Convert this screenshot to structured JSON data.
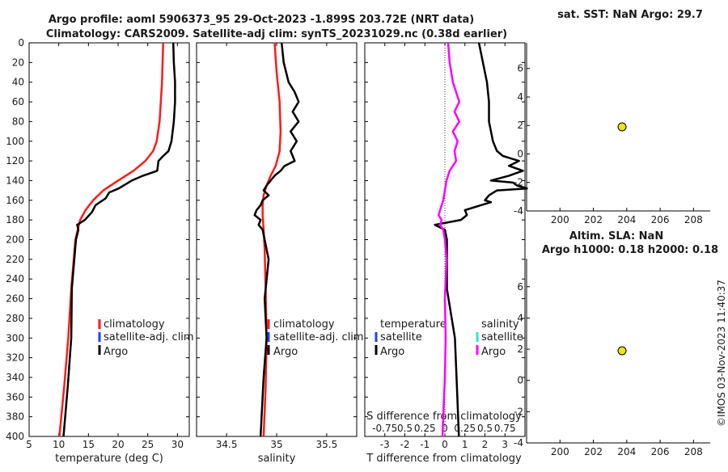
{
  "title_line1": "Argo profile: aoml 5906373_95 29-Oct-2023 -1.899S 203.72E (NRT data)",
  "title_line2": "Climatology: CARS2009. Satellite-adj clim: synTS_20231029.nc (0.38d earlier)",
  "watermark": "©IMOS 03-Nov-2023 11:40:37",
  "colors": {
    "red": "#ff1a1a",
    "black": "#000000",
    "blue": "#1f3fff",
    "magenta": "#ff00ff",
    "cyan": "#33dddd",
    "yellow": "#f0e020"
  },
  "chart_data": [
    {
      "type": "line",
      "id": "temperature",
      "xlabel": "temperature (deg C)",
      "ylabel": "",
      "xlim": [
        5,
        32
      ],
      "ylim": [
        400,
        0
      ],
      "xticks": [
        5,
        10,
        15,
        20,
        25,
        30
      ],
      "yticks": [
        0,
        20,
        40,
        60,
        80,
        100,
        120,
        140,
        160,
        180,
        200,
        220,
        240,
        260,
        280,
        300,
        320,
        340,
        360,
        380,
        400
      ],
      "legend": [
        "climatology",
        "satellite-adj. clim",
        "Argo"
      ],
      "series": [
        {
          "name": "climatology",
          "color": "red",
          "depth": [
            0,
            40,
            80,
            100,
            110,
            120,
            130,
            140,
            150,
            160,
            170,
            180,
            200,
            250,
            300,
            350,
            400
          ],
          "values": [
            27.6,
            27.4,
            27.0,
            26.5,
            25.9,
            24.6,
            22.6,
            20.0,
            17.5,
            15.8,
            14.5,
            13.6,
            12.8,
            12.1,
            11.6,
            10.9,
            10.1
          ]
        },
        {
          "name": "Argo",
          "color": "black",
          "depth": [
            0,
            20,
            40,
            60,
            80,
            100,
            110,
            115,
            120,
            130,
            135,
            140,
            148,
            152,
            158,
            165,
            172,
            180,
            185,
            190,
            200,
            250,
            300,
            350,
            400
          ],
          "values": [
            29.3,
            29.4,
            29.6,
            29.6,
            29.4,
            29.0,
            28.5,
            27.6,
            26.8,
            26.6,
            24.2,
            22.3,
            20.1,
            18.5,
            17.9,
            16.2,
            15.6,
            14.4,
            13.1,
            13.3,
            12.9,
            12.2,
            12.1,
            11.5,
            10.8
          ]
        }
      ]
    },
    {
      "type": "line",
      "id": "salinity",
      "xlabel": "salinity",
      "ylabel": "",
      "xlim": [
        34.2,
        35.8
      ],
      "ylim": [
        400,
        0
      ],
      "xticks": [
        34.5,
        35,
        35.5
      ],
      "yticks": [
        0,
        20,
        40,
        60,
        80,
        100,
        120,
        140,
        160,
        180,
        200,
        220,
        240,
        260,
        280,
        300,
        320,
        340,
        360,
        380,
        400
      ],
      "legend": [
        "climatology",
        "satellite-adj. clim",
        "Argo"
      ],
      "series": [
        {
          "name": "climatology",
          "color": "red",
          "depth": [
            0,
            30,
            60,
            90,
            110,
            125,
            135,
            145,
            155,
            165,
            175,
            190,
            210,
            250,
            300,
            350,
            400
          ],
          "values": [
            34.98,
            35.0,
            35.03,
            35.04,
            35.03,
            34.99,
            34.94,
            34.9,
            34.87,
            34.86,
            34.86,
            34.87,
            34.88,
            34.89,
            34.9,
            34.89,
            34.87
          ]
        },
        {
          "name": "Argo",
          "color": "black",
          "depth": [
            0,
            20,
            40,
            50,
            60,
            70,
            80,
            90,
            100,
            110,
            120,
            125,
            130,
            135,
            145,
            150,
            155,
            160,
            165,
            170,
            175,
            180,
            185,
            190,
            200,
            220,
            260,
            300,
            340,
            380,
            400
          ],
          "values": [
            35.05,
            35.07,
            35.12,
            35.18,
            35.22,
            35.16,
            35.22,
            35.14,
            35.2,
            35.14,
            35.18,
            35.08,
            35.04,
            34.98,
            34.9,
            34.87,
            34.92,
            34.86,
            34.84,
            34.8,
            34.78,
            34.84,
            34.82,
            34.86,
            34.88,
            34.92,
            34.88,
            34.9,
            34.87,
            34.85,
            34.84
          ]
        }
      ]
    },
    {
      "type": "line",
      "id": "differences",
      "xlabel": "T difference from climatology",
      "inner_label": "S difference from climatology",
      "xlim": [
        -4,
        4
      ],
      "ylim": [
        400,
        0
      ],
      "xticks": [
        -3,
        -2,
        -1,
        0,
        1,
        2,
        3
      ],
      "secondary_xticks": [
        "-0.75",
        "0.5",
        "0.25",
        "0",
        "0.25",
        "0.5",
        "0.75"
      ],
      "yticks": [
        0,
        20,
        40,
        60,
        80,
        100,
        120,
        140,
        160,
        180,
        200,
        220,
        240,
        260,
        280,
        300,
        320,
        340,
        360,
        380,
        400
      ],
      "legend_left_title": "temperature",
      "legend_right_title": "salinity",
      "legend_left": [
        "satellite",
        "Argo"
      ],
      "legend_right": [
        "satellite",
        "Argo"
      ],
      "series": [
        {
          "name": "T difference Argo",
          "color": "black",
          "depth": [
            0,
            20,
            40,
            60,
            80,
            100,
            110,
            115,
            120,
            125,
            130,
            135,
            140,
            142,
            145,
            148,
            150,
            155,
            160,
            162,
            165,
            170,
            175,
            180,
            185,
            190,
            200,
            250,
            300,
            350,
            400
          ],
          "values": [
            1.7,
            1.9,
            2.1,
            2.2,
            2.2,
            2.4,
            2.6,
            2.9,
            3.7,
            3.2,
            3.9,
            3.2,
            2.3,
            3.4,
            3.6,
            4.1,
            2.6,
            2.2,
            2.0,
            2.3,
            1.8,
            1.0,
            1.1,
            0.8,
            -0.5,
            0.0,
            0.1,
            0.1,
            0.5,
            0.6,
            0.7
          ]
        },
        {
          "name": "S difference Argo",
          "color": "magenta",
          "depth": [
            0,
            20,
            40,
            50,
            60,
            70,
            80,
            90,
            100,
            110,
            120,
            130,
            140,
            150,
            160,
            170,
            175,
            180,
            185,
            190,
            200,
            220,
            260,
            300,
            340,
            380,
            400
          ],
          "values": [
            0.04,
            0.06,
            0.1,
            0.14,
            0.18,
            0.12,
            0.18,
            0.1,
            0.16,
            0.12,
            0.14,
            0.06,
            0.02,
            0.0,
            -0.02,
            -0.06,
            -0.08,
            -0.04,
            -0.06,
            -0.02,
            0.0,
            0.02,
            0.0,
            0.01,
            0.0,
            -0.02,
            -0.03
          ]
        }
      ]
    },
    {
      "type": "scatter",
      "id": "sst",
      "title": "sat. SST: NaN Argo: 29.7",
      "xlim": [
        198,
        209
      ],
      "ylim": [
        -4,
        7.8
      ],
      "xticks": [
        200,
        202,
        204,
        206,
        208
      ],
      "yticks": [
        -4,
        -2,
        0,
        2,
        4,
        6
      ],
      "points": [
        {
          "x": 203.72,
          "y": 1.9,
          "color": "yellow"
        }
      ]
    },
    {
      "type": "scatter",
      "id": "sla",
      "title_line1": "Altim. SLA: NaN",
      "title_line2": "Argo h1000: 0.18 h2000: 0.18",
      "xlim": [
        198,
        209
      ],
      "ylim": [
        -4,
        7.8
      ],
      "xticks": [
        200,
        202,
        204,
        206,
        208
      ],
      "yticks": [
        -4,
        -2,
        0,
        2,
        4,
        6
      ],
      "points": [
        {
          "x": 203.72,
          "y": 1.9,
          "color": "yellow"
        }
      ]
    }
  ]
}
